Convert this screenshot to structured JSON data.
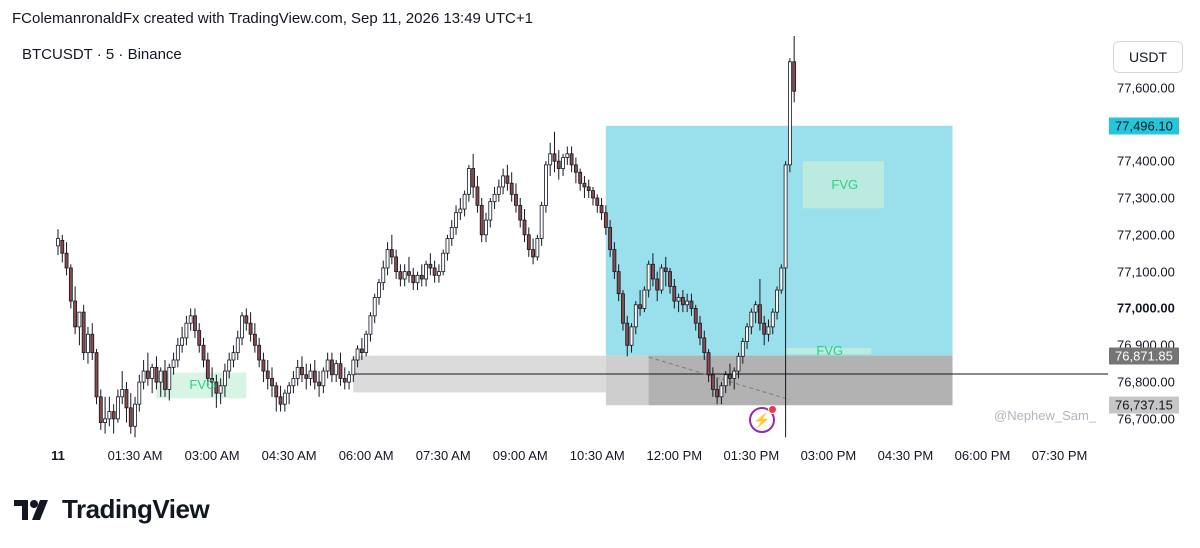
{
  "header": {
    "caption": "FColemanronaldFx created with TradingView.com, Sep 11, 2026 13:49 UTC+1"
  },
  "brand": {
    "name": "TradingView"
  },
  "colors": {
    "up": "#ffffff",
    "down": "#8a4a4a",
    "wick": "#131722",
    "zone": "#77d6e6",
    "fvg": "#c8f0d8",
    "grey_zone": "#bdbdbd",
    "badge": "#9c27b0",
    "tag_blue": "#26c6da"
  },
  "chart_data": {
    "type": "candlestick",
    "symbol": "BTCUSDT",
    "interval": "5",
    "exchange": "Binance",
    "title": "BTCUSDT · 5 · Binance",
    "currency": "USDT",
    "ylim": [
      76640,
      77740
    ],
    "price_ticks": [
      "77,600.00",
      "77,400.00",
      "77,300.00",
      "77,200.00",
      "77,100.00",
      "77,000.00",
      "76,900.00",
      "76,800.00",
      "76,700.00"
    ],
    "price_tick_values": [
      77600,
      77400,
      77300,
      77200,
      77100,
      77000,
      76900,
      76800,
      76700
    ],
    "bold_price_tick": "77,000.00",
    "time_ticks": [
      "11",
      "01:30 AM",
      "03:00 AM",
      "04:30 AM",
      "06:00 AM",
      "07:30 AM",
      "09:00 AM",
      "10:30 AM",
      "12:00 PM",
      "01:30 PM",
      "03:00 PM",
      "04:30 PM",
      "06:00 PM",
      "07:30 PM"
    ],
    "time_tick_bars": [
      0,
      18,
      36,
      54,
      72,
      90,
      108,
      126,
      144,
      162,
      180,
      198,
      216,
      234
    ],
    "bold_time_tick": "11",
    "last_bar_index": 172,
    "price_tags": [
      {
        "label": "77,496.10",
        "value": 77496.1,
        "bg": "#26c6da",
        "color": "#131722"
      },
      {
        "label": "76,871.85",
        "value": 76871.85,
        "bg": "#757575",
        "color": "#ffffff"
      },
      {
        "label": "76,737.15",
        "value": 76737.15,
        "bg": "#c6c6c6",
        "color": "#131722"
      }
    ],
    "zones": [
      {
        "name": "target-zone",
        "x1_bar": 128,
        "x2_bar": 209,
        "top": 77496.1,
        "bottom": 76871.85,
        "color": "#77d6e6"
      },
      {
        "name": "grey-zone",
        "x1_bar": 128,
        "x2_bar": 209,
        "top": 76871.85,
        "bottom": 76737.15,
        "color": "#bdbdbd"
      },
      {
        "name": "grey-zone-left",
        "x1_bar": 69,
        "x2_bar": 128,
        "top": 76871.85,
        "bottom": 76772,
        "color": "#cfcfcf"
      },
      {
        "name": "grey-zone-inner",
        "x1_bar": 138,
        "x2_bar": 209,
        "top": 76871.85,
        "bottom": 76737.15,
        "color": "#a8a8a8"
      }
    ],
    "fvgs": [
      {
        "label": "FVG",
        "x1_bar": 23,
        "x2_bar": 44,
        "top": 76826,
        "bottom": 76756
      },
      {
        "label": "FVG",
        "x1_bar": 174,
        "x2_bar": 193,
        "top": 77400,
        "bottom": 77272
      },
      {
        "label": "FVG",
        "x1_bar": 170,
        "x2_bar": 190,
        "top": 76893,
        "bottom": 76876
      }
    ],
    "hline": {
      "value": 76822,
      "x1_bar": 69,
      "x2_end": true
    },
    "dashed_line": {
      "x1_bar": 138,
      "y1": 76868,
      "x2_bar": 171,
      "y2": 76752
    },
    "candles": [
      {
        "o": 77170,
        "h": 77215,
        "c": 77190,
        "l": 77145
      },
      {
        "o": 77185,
        "h": 77200,
        "c": 77150,
        "l": 77125
      },
      {
        "o": 77150,
        "h": 77180,
        "c": 77110,
        "l": 77090
      },
      {
        "o": 77110,
        "h": 77120,
        "c": 77020,
        "l": 77000
      },
      {
        "o": 77020,
        "h": 77060,
        "c": 76950,
        "l": 76930
      },
      {
        "o": 76950,
        "h": 76990,
        "c": 76990,
        "l": 76900
      },
      {
        "o": 76990,
        "h": 77010,
        "c": 76880,
        "l": 76860
      },
      {
        "o": 76880,
        "h": 76950,
        "c": 76930,
        "l": 76850
      },
      {
        "o": 76930,
        "h": 76960,
        "c": 76880,
        "l": 76860
      },
      {
        "o": 76880,
        "h": 76890,
        "c": 76760,
        "l": 76740
      },
      {
        "o": 76760,
        "h": 76780,
        "c": 76690,
        "l": 76670
      },
      {
        "o": 76690,
        "h": 76760,
        "c": 76700,
        "l": 76660
      },
      {
        "o": 76700,
        "h": 76760,
        "c": 76720,
        "l": 76680
      },
      {
        "o": 76720,
        "h": 76740,
        "c": 76700,
        "l": 76660
      },
      {
        "o": 76700,
        "h": 76780,
        "c": 76760,
        "l": 76690
      },
      {
        "o": 76760,
        "h": 76830,
        "c": 76780,
        "l": 76740
      },
      {
        "o": 76780,
        "h": 76800,
        "c": 76730,
        "l": 76690
      },
      {
        "o": 76730,
        "h": 76770,
        "c": 76680,
        "l": 76660
      },
      {
        "o": 76680,
        "h": 76760,
        "c": 76740,
        "l": 76650
      },
      {
        "o": 76740,
        "h": 76820,
        "c": 76800,
        "l": 76720
      },
      {
        "o": 76800,
        "h": 76860,
        "c": 76830,
        "l": 76780
      },
      {
        "o": 76830,
        "h": 76880,
        "c": 76810,
        "l": 76790
      },
      {
        "o": 76810,
        "h": 76850,
        "c": 76840,
        "l": 76770
      },
      {
        "o": 76840,
        "h": 76870,
        "c": 76800,
        "l": 76780
      },
      {
        "o": 76800,
        "h": 76840,
        "c": 76830,
        "l": 76760
      },
      {
        "o": 76830,
        "h": 76860,
        "c": 76780,
        "l": 76760
      },
      {
        "o": 76780,
        "h": 76850,
        "c": 76840,
        "l": 76750
      },
      {
        "o": 76840,
        "h": 76880,
        "c": 76860,
        "l": 76820
      },
      {
        "o": 76860,
        "h": 76920,
        "c": 76900,
        "l": 76840
      },
      {
        "o": 76900,
        "h": 76950,
        "c": 76920,
        "l": 76880
      },
      {
        "o": 76920,
        "h": 76980,
        "c": 76960,
        "l": 76900
      },
      {
        "o": 76960,
        "h": 77000,
        "c": 76980,
        "l": 76940
      },
      {
        "o": 76980,
        "h": 77000,
        "c": 76940,
        "l": 76920
      },
      {
        "o": 76940,
        "h": 76960,
        "c": 76900,
        "l": 76880
      },
      {
        "o": 76900,
        "h": 76920,
        "c": 76860,
        "l": 76840
      },
      {
        "o": 76860,
        "h": 76880,
        "c": 76810,
        "l": 76790
      },
      {
        "o": 76810,
        "h": 76840,
        "c": 76800,
        "l": 76760
      },
      {
        "o": 76800,
        "h": 76820,
        "c": 76770,
        "l": 76730
      },
      {
        "o": 76770,
        "h": 76810,
        "c": 76790,
        "l": 76740
      },
      {
        "o": 76790,
        "h": 76850,
        "c": 76830,
        "l": 76760
      },
      {
        "o": 76830,
        "h": 76880,
        "c": 76860,
        "l": 76810
      },
      {
        "o": 76860,
        "h": 76900,
        "c": 76880,
        "l": 76840
      },
      {
        "o": 76880,
        "h": 76940,
        "c": 76920,
        "l": 76860
      },
      {
        "o": 76920,
        "h": 76990,
        "c": 76980,
        "l": 76900
      },
      {
        "o": 76980,
        "h": 77000,
        "c": 76960,
        "l": 76940
      },
      {
        "o": 76960,
        "h": 76990,
        "c": 76930,
        "l": 76910
      },
      {
        "o": 76930,
        "h": 76960,
        "c": 76900,
        "l": 76880
      },
      {
        "o": 76900,
        "h": 76920,
        "c": 76860,
        "l": 76840
      },
      {
        "o": 76860,
        "h": 76880,
        "c": 76830,
        "l": 76800
      },
      {
        "o": 76830,
        "h": 76860,
        "c": 76810,
        "l": 76780
      },
      {
        "o": 76810,
        "h": 76840,
        "c": 76790,
        "l": 76760
      },
      {
        "o": 76790,
        "h": 76800,
        "c": 76760,
        "l": 76720
      },
      {
        "o": 76760,
        "h": 76790,
        "c": 76740,
        "l": 76720
      },
      {
        "o": 76740,
        "h": 76780,
        "c": 76770,
        "l": 76720
      },
      {
        "o": 76770,
        "h": 76800,
        "c": 76790,
        "l": 76740
      },
      {
        "o": 76790,
        "h": 76830,
        "c": 76810,
        "l": 76770
      },
      {
        "o": 76810,
        "h": 76860,
        "c": 76840,
        "l": 76790
      },
      {
        "o": 76840,
        "h": 76870,
        "c": 76820,
        "l": 76800
      },
      {
        "o": 76820,
        "h": 76850,
        "c": 76810,
        "l": 76780
      },
      {
        "o": 76810,
        "h": 76850,
        "c": 76830,
        "l": 76790
      },
      {
        "o": 76830,
        "h": 76860,
        "c": 76800,
        "l": 76780
      },
      {
        "o": 76800,
        "h": 76830,
        "c": 76790,
        "l": 76760
      },
      {
        "o": 76790,
        "h": 76840,
        "c": 76830,
        "l": 76770
      },
      {
        "o": 76830,
        "h": 76880,
        "c": 76860,
        "l": 76810
      },
      {
        "o": 76860,
        "h": 76880,
        "c": 76820,
        "l": 76800
      },
      {
        "o": 76820,
        "h": 76860,
        "c": 76850,
        "l": 76800
      },
      {
        "o": 76850,
        "h": 76880,
        "c": 76810,
        "l": 76790
      },
      {
        "o": 76810,
        "h": 76840,
        "c": 76800,
        "l": 76780
      },
      {
        "o": 76800,
        "h": 76830,
        "c": 76820,
        "l": 76780
      },
      {
        "o": 76820,
        "h": 76870,
        "c": 76860,
        "l": 76800
      },
      {
        "o": 76860,
        "h": 76900,
        "c": 76890,
        "l": 76840
      },
      {
        "o": 76890,
        "h": 76920,
        "c": 76880,
        "l": 76860
      },
      {
        "o": 76880,
        "h": 76940,
        "c": 76930,
        "l": 76870
      },
      {
        "o": 76930,
        "h": 76990,
        "c": 76980,
        "l": 76910
      },
      {
        "o": 76980,
        "h": 77040,
        "c": 77030,
        "l": 76960
      },
      {
        "o": 77030,
        "h": 77080,
        "c": 77070,
        "l": 77010
      },
      {
        "o": 77070,
        "h": 77130,
        "c": 77110,
        "l": 77050
      },
      {
        "o": 77110,
        "h": 77180,
        "c": 77160,
        "l": 77090
      },
      {
        "o": 77160,
        "h": 77200,
        "c": 77140,
        "l": 77120
      },
      {
        "o": 77140,
        "h": 77160,
        "c": 77100,
        "l": 77080
      },
      {
        "o": 77100,
        "h": 77120,
        "c": 77080,
        "l": 77060
      },
      {
        "o": 77080,
        "h": 77120,
        "c": 77100,
        "l": 77060
      },
      {
        "o": 77100,
        "h": 77140,
        "c": 77090,
        "l": 77070
      },
      {
        "o": 77090,
        "h": 77110,
        "c": 77070,
        "l": 77050
      },
      {
        "o": 77070,
        "h": 77100,
        "c": 77090,
        "l": 77050
      },
      {
        "o": 77090,
        "h": 77120,
        "c": 77080,
        "l": 77060
      },
      {
        "o": 77080,
        "h": 77130,
        "c": 77120,
        "l": 77060
      },
      {
        "o": 77120,
        "h": 77150,
        "c": 77110,
        "l": 77090
      },
      {
        "o": 77110,
        "h": 77130,
        "c": 77090,
        "l": 77070
      },
      {
        "o": 77090,
        "h": 77120,
        "c": 77100,
        "l": 77070
      },
      {
        "o": 77100,
        "h": 77160,
        "c": 77150,
        "l": 77090
      },
      {
        "o": 77150,
        "h": 77200,
        "c": 77190,
        "l": 77130
      },
      {
        "o": 77190,
        "h": 77240,
        "c": 77220,
        "l": 77170
      },
      {
        "o": 77220,
        "h": 77280,
        "c": 77260,
        "l": 77200
      },
      {
        "o": 77260,
        "h": 77300,
        "c": 77270,
        "l": 77240
      },
      {
        "o": 77270,
        "h": 77320,
        "c": 77310,
        "l": 77250
      },
      {
        "o": 77310,
        "h": 77390,
        "c": 77380,
        "l": 77290
      },
      {
        "o": 77380,
        "h": 77420,
        "c": 77330,
        "l": 77300
      },
      {
        "o": 77330,
        "h": 77360,
        "c": 77280,
        "l": 77260
      },
      {
        "o": 77280,
        "h": 77300,
        "c": 77200,
        "l": 77180
      },
      {
        "o": 77200,
        "h": 77260,
        "c": 77240,
        "l": 77180
      },
      {
        "o": 77240,
        "h": 77300,
        "c": 77290,
        "l": 77220
      },
      {
        "o": 77290,
        "h": 77330,
        "c": 77310,
        "l": 77270
      },
      {
        "o": 77310,
        "h": 77350,
        "c": 77330,
        "l": 77290
      },
      {
        "o": 77330,
        "h": 77380,
        "c": 77360,
        "l": 77310
      },
      {
        "o": 77360,
        "h": 77390,
        "c": 77340,
        "l": 77320
      },
      {
        "o": 77340,
        "h": 77370,
        "c": 77310,
        "l": 77290
      },
      {
        "o": 77310,
        "h": 77340,
        "c": 77280,
        "l": 77260
      },
      {
        "o": 77280,
        "h": 77300,
        "c": 77240,
        "l": 77220
      },
      {
        "o": 77240,
        "h": 77270,
        "c": 77200,
        "l": 77180
      },
      {
        "o": 77200,
        "h": 77220,
        "c": 77160,
        "l": 77140
      },
      {
        "o": 77160,
        "h": 77190,
        "c": 77140,
        "l": 77120
      },
      {
        "o": 77140,
        "h": 77200,
        "c": 77190,
        "l": 77130
      },
      {
        "o": 77190,
        "h": 77290,
        "c": 77280,
        "l": 77170
      },
      {
        "o": 77280,
        "h": 77400,
        "c": 77390,
        "l": 77260
      },
      {
        "o": 77390,
        "h": 77450,
        "c": 77420,
        "l": 77360
      },
      {
        "o": 77420,
        "h": 77480,
        "c": 77400,
        "l": 77370
      },
      {
        "o": 77400,
        "h": 77430,
        "c": 77380,
        "l": 77350
      },
      {
        "o": 77380,
        "h": 77420,
        "c": 77410,
        "l": 77360
      },
      {
        "o": 77410,
        "h": 77440,
        "c": 77420,
        "l": 77390
      },
      {
        "o": 77420,
        "h": 77440,
        "c": 77390,
        "l": 77370
      },
      {
        "o": 77390,
        "h": 77410,
        "c": 77370,
        "l": 77340
      },
      {
        "o": 77370,
        "h": 77380,
        "c": 77340,
        "l": 77320
      },
      {
        "o": 77340,
        "h": 77360,
        "c": 77330,
        "l": 77300
      },
      {
        "o": 77330,
        "h": 77350,
        "c": 77320,
        "l": 77300
      },
      {
        "o": 77320,
        "h": 77330,
        "c": 77300,
        "l": 77280
      },
      {
        "o": 77300,
        "h": 77310,
        "c": 77280,
        "l": 77260
      },
      {
        "o": 77280,
        "h": 77300,
        "c": 77260,
        "l": 77240
      },
      {
        "o": 77260,
        "h": 77280,
        "c": 77220,
        "l": 77200
      },
      {
        "o": 77220,
        "h": 77240,
        "c": 77160,
        "l": 77140
      },
      {
        "o": 77160,
        "h": 77180,
        "c": 77100,
        "l": 77080
      },
      {
        "o": 77100,
        "h": 77120,
        "c": 77040,
        "l": 77020
      },
      {
        "o": 77040,
        "h": 77050,
        "c": 76960,
        "l": 76940
      },
      {
        "o": 76960,
        "h": 76980,
        "c": 76900,
        "l": 76870
      },
      {
        "o": 76900,
        "h": 76960,
        "c": 76950,
        "l": 76880
      },
      {
        "o": 76950,
        "h": 77020,
        "c": 77010,
        "l": 76930
      },
      {
        "o": 77010,
        "h": 77050,
        "c": 77000,
        "l": 76980
      },
      {
        "o": 77000,
        "h": 77060,
        "c": 77050,
        "l": 76990
      },
      {
        "o": 77050,
        "h": 77130,
        "c": 77120,
        "l": 77030
      },
      {
        "o": 77120,
        "h": 77150,
        "c": 77080,
        "l": 77060
      },
      {
        "o": 77080,
        "h": 77100,
        "c": 77050,
        "l": 77020
      },
      {
        "o": 77050,
        "h": 77120,
        "c": 77110,
        "l": 77040
      },
      {
        "o": 77110,
        "h": 77140,
        "c": 77100,
        "l": 77060
      },
      {
        "o": 77100,
        "h": 77110,
        "c": 77060,
        "l": 77040
      },
      {
        "o": 77060,
        "h": 77080,
        "c": 77020,
        "l": 77000
      },
      {
        "o": 77020,
        "h": 77040,
        "c": 77030,
        "l": 76990
      },
      {
        "o": 77030,
        "h": 77050,
        "c": 77010,
        "l": 76990
      },
      {
        "o": 77010,
        "h": 77040,
        "c": 77020,
        "l": 76990
      },
      {
        "o": 77020,
        "h": 77040,
        "c": 77000,
        "l": 76980
      },
      {
        "o": 77000,
        "h": 77010,
        "c": 76960,
        "l": 76940
      },
      {
        "o": 76960,
        "h": 76980,
        "c": 76920,
        "l": 76900
      },
      {
        "o": 76920,
        "h": 76940,
        "c": 76880,
        "l": 76860
      },
      {
        "o": 76880,
        "h": 76890,
        "c": 76820,
        "l": 76800
      },
      {
        "o": 76820,
        "h": 76840,
        "c": 76780,
        "l": 76760
      },
      {
        "o": 76780,
        "h": 76810,
        "c": 76760,
        "l": 76740
      },
      {
        "o": 76760,
        "h": 76800,
        "c": 76790,
        "l": 76740
      },
      {
        "o": 76790,
        "h": 76830,
        "c": 76820,
        "l": 76770
      },
      {
        "o": 76820,
        "h": 76850,
        "c": 76810,
        "l": 76790
      },
      {
        "o": 76810,
        "h": 76840,
        "c": 76830,
        "l": 76780
      },
      {
        "o": 76830,
        "h": 76880,
        "c": 76870,
        "l": 76810
      },
      {
        "o": 76870,
        "h": 76920,
        "c": 76910,
        "l": 76850
      },
      {
        "o": 76910,
        "h": 76960,
        "c": 76950,
        "l": 76890
      },
      {
        "o": 76950,
        "h": 77000,
        "c": 76990,
        "l": 76930
      },
      {
        "o": 76990,
        "h": 77020,
        "c": 77010,
        "l": 76960
      },
      {
        "o": 77010,
        "h": 77080,
        "c": 76960,
        "l": 76940
      },
      {
        "o": 76960,
        "h": 76980,
        "c": 76930,
        "l": 76900
      },
      {
        "o": 76930,
        "h": 76970,
        "c": 76950,
        "l": 76910
      },
      {
        "o": 76950,
        "h": 77000,
        "c": 76990,
        "l": 76930
      },
      {
        "o": 76990,
        "h": 77060,
        "c": 77050,
        "l": 76970
      },
      {
        "o": 77050,
        "h": 77120,
        "c": 77110,
        "l": 77040
      },
      {
        "o": 77110,
        "h": 77400,
        "c": 77390,
        "l": 76650
      },
      {
        "o": 77390,
        "h": 77680,
        "c": 77670,
        "l": 77370
      },
      {
        "o": 77670,
        "h": 77740,
        "c": 77590,
        "l": 77560
      }
    ]
  },
  "annotations": {
    "watermark": "@Nephew_Sam_",
    "fvg_labels": [
      "FVG",
      "FVG",
      "FVG"
    ]
  }
}
